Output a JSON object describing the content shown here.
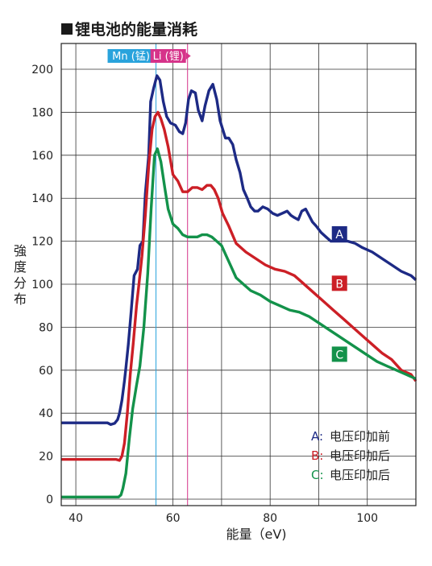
{
  "title": "锂电池的能量消耗",
  "chart_data": {
    "type": "line",
    "title": "锂电池的能量消耗",
    "xlabel": "能量（eV)",
    "ylabel": "強度分布",
    "xlim": [
      37,
      110
    ],
    "ylim": [
      -3,
      212
    ],
    "xticks": [
      40,
      60,
      80,
      100
    ],
    "yticks": [
      0,
      20,
      40,
      60,
      80,
      100,
      120,
      140,
      160,
      180,
      200
    ],
    "grid": true,
    "reference_lines": [
      {
        "name": "Mn (锰)",
        "x": 56.5,
        "color": "#29a3dc"
      },
      {
        "name": "Li (锂)",
        "x": 63.0,
        "color": "#d6338a"
      }
    ],
    "series": [
      {
        "name": "A",
        "color": "#1d2a85",
        "x": [
          37,
          46.5,
          47.2,
          48,
          48.6,
          49,
          49.5,
          50,
          50.3,
          50.8,
          51.3,
          52,
          52.7,
          53.2,
          53.8,
          54.3,
          55,
          55.4,
          56,
          56.7,
          57.3,
          58,
          58.7,
          59.5,
          60.5,
          61.3,
          62,
          62.6,
          63.2,
          63.8,
          64.6,
          65.2,
          66,
          66.6,
          67.4,
          68.2,
          69,
          69.7,
          70.8,
          71.5,
          72.3,
          73,
          73.8,
          74.5,
          75.3,
          76,
          76.8,
          77.5,
          78.5,
          79.5,
          80.5,
          81.5,
          82.5,
          83.5,
          84.3,
          85,
          85.8,
          86.5,
          87.3,
          88,
          88.7,
          89.5,
          90.5,
          91.5,
          92.5,
          94,
          96,
          97.5,
          99,
          101,
          103,
          105,
          107,
          109,
          110
        ],
        "values": [
          35.5,
          35.5,
          34.7,
          35.3,
          37,
          40,
          46,
          55,
          61,
          72,
          85,
          104,
          107,
          118,
          120,
          142,
          160,
          185,
          191,
          197,
          195,
          185,
          178,
          175,
          174,
          171,
          170,
          175,
          186,
          190,
          189,
          181,
          176,
          183,
          190,
          193,
          186,
          176,
          168,
          168,
          165,
          158,
          152,
          144,
          140,
          136,
          134,
          134,
          136,
          135,
          133,
          132,
          133,
          134,
          132,
          131,
          130,
          134,
          135,
          132,
          129,
          127,
          124,
          122,
          120,
          120,
          120,
          119,
          117,
          115,
          112,
          109,
          106,
          104,
          102
        ]
      },
      {
        "name": "B",
        "color": "#cc1f26",
        "x": [
          37,
          48.3,
          49,
          49.5,
          50,
          50.6,
          51.2,
          51.8,
          52.5,
          53,
          53.6,
          54.3,
          55,
          55.7,
          56.3,
          56.9,
          57.5,
          58.2,
          59,
          60,
          61,
          62,
          63,
          64,
          65,
          66,
          67,
          67.8,
          68.5,
          69.3,
          70.2,
          71.5,
          73,
          75,
          77,
          79,
          81,
          83,
          85,
          86.5,
          87.5,
          89,
          91,
          93,
          95,
          97,
          99,
          101,
          103,
          105,
          107,
          109,
          110
        ],
        "values": [
          18.5,
          18.5,
          18,
          20,
          26,
          40,
          58,
          72,
          90,
          100,
          113,
          132,
          155,
          172,
          178,
          180,
          177,
          172,
          164,
          151,
          148,
          143,
          143,
          145,
          145,
          144,
          146,
          146,
          144,
          140,
          133,
          127,
          119,
          115,
          112,
          109,
          107,
          106,
          104,
          101,
          99,
          96,
          92,
          88,
          84,
          80,
          76,
          72,
          68,
          65,
          60,
          58,
          55
        ]
      },
      {
        "name": "C",
        "color": "#13924a",
        "x": [
          37,
          48.8,
          49.3,
          49.7,
          50.3,
          51,
          51.7,
          52.5,
          53.2,
          54,
          54.8,
          55.5,
          56.2,
          56.8,
          57.5,
          58.3,
          59,
          60,
          61,
          62,
          63,
          64,
          65,
          66,
          67,
          68,
          69,
          70,
          71,
          72,
          73,
          74.5,
          76,
          78,
          80,
          82,
          84,
          86,
          88,
          90,
          92,
          94,
          96,
          98,
          100,
          102,
          104,
          106,
          108,
          110
        ],
        "values": [
          1,
          1,
          2,
          5,
          12,
          28,
          42,
          53,
          62,
          80,
          105,
          135,
          160,
          163,
          157,
          145,
          135,
          128,
          126,
          123,
          122,
          122,
          122,
          123,
          123,
          122,
          120,
          118,
          113,
          108,
          103,
          100,
          97,
          95,
          92,
          90,
          88,
          87,
          85,
          82,
          79,
          76,
          73,
          70,
          67,
          64,
          62,
          60,
          58,
          56
        ]
      }
    ],
    "series_labels": [
      "A",
      "B",
      "C"
    ],
    "legend": {
      "position": "bottom-right",
      "entries": [
        {
          "key": "A:",
          "text": "电压印加前",
          "color": "#1d2a85"
        },
        {
          "key": "B:",
          "text": "电压印加后",
          "color": "#cc1f26"
        },
        {
          "key": "C:",
          "text": "电压印加后",
          "color": "#13924a"
        }
      ]
    }
  }
}
